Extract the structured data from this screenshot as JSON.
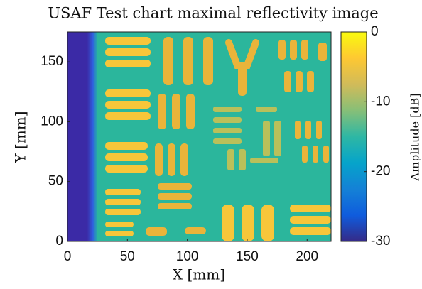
{
  "chart_data": {
    "type": "heatmap",
    "title": "USAF Test chart maximal reflectivity image",
    "xlabel": "X [mm]",
    "ylabel": "Y [mm]",
    "xlim": [
      0,
      220
    ],
    "ylim": [
      0,
      175
    ],
    "xticks": [
      0,
      50,
      100,
      150,
      200
    ],
    "yticks": [
      0,
      50,
      100,
      150
    ],
    "colorbar": {
      "label": "Amplitude [dB]",
      "clim": [
        -30,
        0
      ],
      "ticks": [
        0,
        -10,
        -20,
        -30
      ],
      "colors": [
        "#352a87",
        "#0f5cdd",
        "#1481d6",
        "#06a4ca",
        "#2eb7a4",
        "#87bf77",
        "#d1bb59",
        "#fec832",
        "#f9fb0e"
      ]
    }
  }
}
